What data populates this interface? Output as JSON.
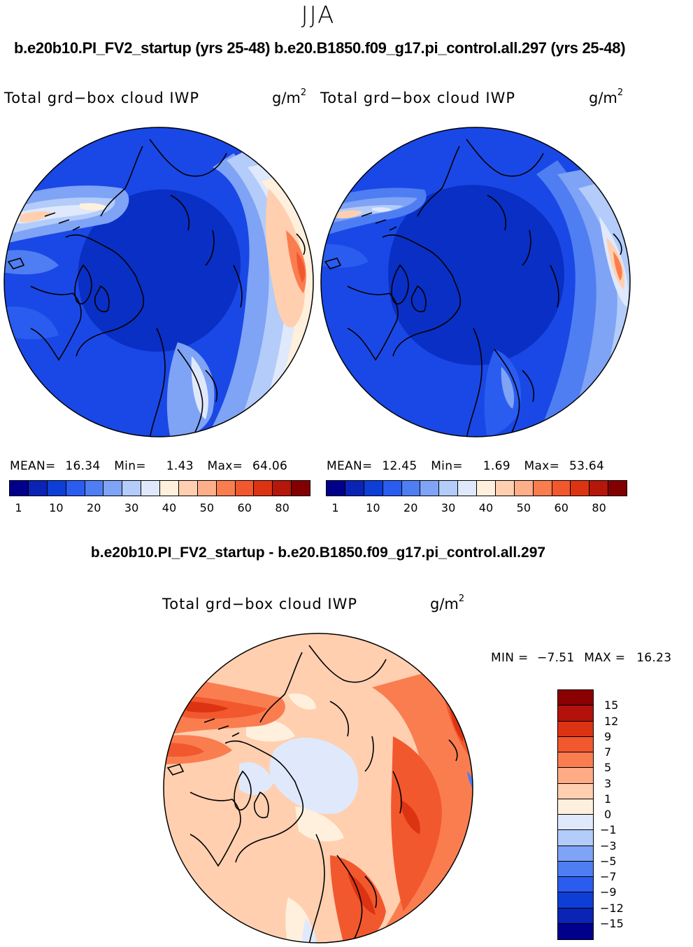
{
  "season": "JJA",
  "panels": [
    {
      "case_title": "b.e20b10.PI_FV2_startup (yrs 25-48)",
      "variable": "Total grd−box cloud IWP",
      "units_base": "g/m",
      "units_exp": "2",
      "stats": {
        "mean_label": "MEAN=",
        "mean": "16.34",
        "min_label": "Min=",
        "min": "1.43",
        "max_label": "Max=",
        "max": "64.06"
      }
    },
    {
      "case_title": "b.e20.B1850.f09_g17.pi_control.all.297 (yrs 25-48)",
      "variable": "Total grd−box cloud IWP",
      "units_base": "g/m",
      "units_exp": "2",
      "stats": {
        "mean_label": "MEAN=",
        "mean": "12.45",
        "min_label": "Min=",
        "min": "1.69",
        "max_label": "Max=",
        "max": "53.64"
      }
    }
  ],
  "abs_colorbar": {
    "colors": [
      "#00008b",
      "#0a24b5",
      "#0d3ed6",
      "#2a5cf0",
      "#4f7ef2",
      "#7fa3f5",
      "#b3ccfa",
      "#dfe9fb",
      "#fff0dd",
      "#ffcfb0",
      "#ffae8a",
      "#fa7d50",
      "#f2582e",
      "#dc3412",
      "#b5170a",
      "#830000"
    ],
    "tick_labels": [
      "1",
      "10",
      "20",
      "30",
      "40",
      "50",
      "60",
      "80"
    ]
  },
  "diff": {
    "case_title": "b.e20b10.PI_FV2_startup - b.e20.B1850.f09_g17.pi_control.all.297",
    "variable": "Total grd−box cloud IWP",
    "units_base": "g/m",
    "units_exp": "2",
    "min_label": "MIN =",
    "min": "−7.51",
    "max_label": "MAX =",
    "max": "16.23",
    "colorbar": {
      "colors": [
        "#8b0000",
        "#b3120b",
        "#dc3412",
        "#f2582e",
        "#fa7d50",
        "#ffab85",
        "#ffcfb0",
        "#fff0dd",
        "#dfe9fb",
        "#b3ccfa",
        "#7fa3f5",
        "#4f7ef2",
        "#2a5cf0",
        "#0d3ed6",
        "#0a24b5",
        "#00008b"
      ],
      "tick_labels": [
        "15",
        "12",
        "9",
        "7",
        "5",
        "3",
        "1",
        "0",
        "−1",
        "−3",
        "−5",
        "−7",
        "−9",
        "−12",
        "−15"
      ]
    }
  }
}
